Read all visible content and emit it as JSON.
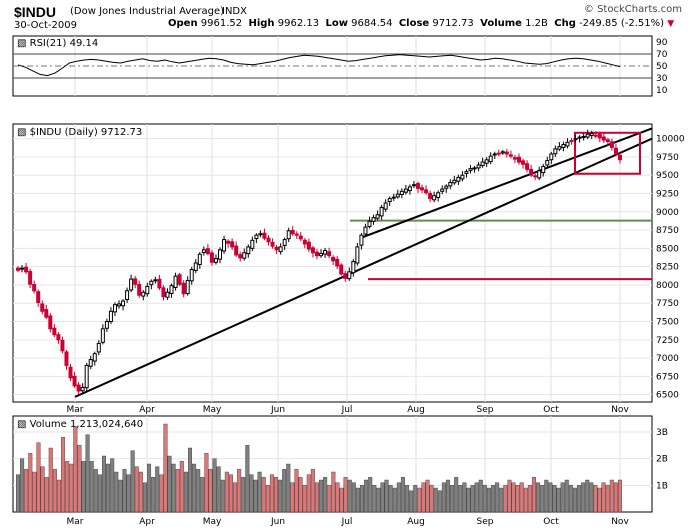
{
  "header": {
    "symbol": "$INDU",
    "description": "(Dow Jones Industrial Average)",
    "exchange": "INDX",
    "date": "30-Oct-2009",
    "open_label": "Open",
    "open": "9961.52",
    "high_label": "High",
    "high": "9962.13",
    "low_label": "Low",
    "low": "9684.54",
    "close_label": "Close",
    "close": "9712.73",
    "volume_label": "Volume",
    "volume": "1.2B",
    "chg_label": "Chg",
    "chg": "-249.85 (-2.51%)",
    "brand": "© StockCharts.com"
  },
  "colors": {
    "up": "#000000",
    "down": "#cc0033",
    "volume_up": "#808080",
    "volume_down": "#dd7777",
    "support": "#cc0033",
    "midline": "#668855"
  },
  "chart_data": [
    {
      "type": "line",
      "title": "RSI(21) 49.14",
      "ylim": [
        0,
        100
      ],
      "yticks": [
        90,
        70,
        50,
        30,
        10
      ],
      "reference_lines": [
        70,
        50,
        30
      ],
      "y": [
        52,
        48,
        42,
        36,
        34,
        38,
        46,
        55,
        58,
        60,
        61,
        60,
        58,
        56,
        55,
        58,
        60,
        62,
        59,
        58,
        60,
        57,
        55,
        57,
        59,
        61,
        63,
        62,
        60,
        56,
        54,
        53,
        52,
        54,
        56,
        58,
        61,
        64,
        66,
        68,
        67,
        66,
        64,
        62,
        60,
        58,
        59,
        61,
        63,
        65,
        67,
        68,
        69,
        68,
        67,
        66,
        65,
        66,
        67,
        68,
        66,
        64,
        62,
        60,
        61,
        63,
        62,
        60,
        58,
        55,
        54,
        53,
        54,
        57,
        60,
        62,
        63,
        62,
        60,
        58,
        55,
        52,
        49
      ]
    },
    {
      "type": "candlestick",
      "title": "$INDU (Daily) 9712.73",
      "x_labels": [
        "Mar",
        "Apr",
        "May",
        "Jun",
        "Jul",
        "Aug",
        "Sep",
        "Oct",
        "Nov"
      ],
      "ylim": [
        6400,
        10200
      ],
      "yticks": [
        10000,
        9750,
        9500,
        9250,
        9000,
        8750,
        8500,
        8250,
        8000,
        7750,
        7500,
        7250,
        7000,
        6750,
        6500
      ],
      "close": [
        8200,
        8230,
        8180,
        8010,
        7920,
        7760,
        7640,
        7560,
        7400,
        7320,
        7250,
        7100,
        6900,
        6730,
        6620,
        6550,
        6600,
        6900,
        6980,
        7060,
        7200,
        7400,
        7500,
        7640,
        7730,
        7740,
        7780,
        7920,
        8080,
        8010,
        7860,
        7900,
        7980,
        8050,
        8070,
        7960,
        7840,
        7900,
        7990,
        8120,
        8010,
        7880,
        8060,
        8210,
        8300,
        8420,
        8480,
        8430,
        8310,
        8360,
        8480,
        8620,
        8570,
        8520,
        8410,
        8370,
        8440,
        8520,
        8610,
        8680,
        8700,
        8640,
        8590,
        8530,
        8480,
        8520,
        8620,
        8740,
        8700,
        8680,
        8630,
        8560,
        8490,
        8440,
        8400,
        8430,
        8470,
        8400,
        8330,
        8260,
        8150,
        8090,
        8180,
        8320,
        8520,
        8680,
        8790,
        8870,
        8920,
        8960,
        9060,
        9120,
        9180,
        9200,
        9240,
        9280,
        9310,
        9340,
        9370,
        9320,
        9300,
        9260,
        9180,
        9220,
        9260,
        9310,
        9350,
        9400,
        9430,
        9470,
        9500,
        9550,
        9590,
        9600,
        9640,
        9680,
        9710,
        9760,
        9790,
        9800,
        9820,
        9790,
        9760,
        9720,
        9680,
        9650,
        9580,
        9500,
        9480,
        9560,
        9620,
        9700,
        9790,
        9860,
        9890,
        9920,
        9950,
        9970,
        10000,
        10020,
        10030,
        10060,
        10070,
        10040,
        10010,
        9980,
        9960,
        9880,
        9790,
        9712
      ],
      "trendlines": [
        {
          "name": "upper",
          "from": [
            "May",
            8650
          ],
          "to": [
            "Nov",
            10140
          ]
        },
        {
          "name": "lower",
          "from": [
            "Mar",
            6470
          ],
          "to": [
            "Nov",
            10000
          ]
        }
      ],
      "horizontal_lines": [
        8880,
        8080
      ],
      "highlight_box": {
        "from_price": 9520,
        "to_price": 10080
      }
    },
    {
      "type": "bar",
      "title": "Volume 1,213,024,640",
      "yticks": [
        "3B",
        "2B",
        "1B"
      ],
      "ylim": [
        0,
        3.6
      ],
      "values": [
        1.4,
        2.0,
        1.6,
        2.2,
        1.5,
        2.6,
        1.7,
        1.3,
        2.4,
        1.6,
        1.2,
        2.8,
        1.9,
        1.8,
        3.2,
        2.5,
        1.9,
        2.9,
        1.9,
        1.6,
        1.4,
        2.1,
        1.8,
        2.0,
        1.5,
        1.2,
        1.6,
        1.4,
        2.3,
        1.7,
        1.5,
        1.1,
        1.8,
        1.3,
        1.7,
        1.4,
        3.3,
        2.1,
        1.8,
        1.6,
        1.9,
        1.5,
        2.4,
        1.8,
        1.6,
        1.3,
        2.2,
        1.6,
        2.0,
        1.7,
        1.2,
        1.5,
        1.4,
        1.1,
        1.6,
        1.3,
        2.5,
        1.4,
        1.2,
        1.5,
        1.3,
        1.0,
        1.4,
        1.3,
        1.2,
        1.6,
        1.8,
        1.1,
        1.6,
        1.3,
        1.0,
        1.4,
        1.6,
        1.1,
        1.2,
        1.3,
        1.0,
        1.5,
        1.1,
        0.9,
        1.3,
        1.2,
        1.1,
        0.9,
        1.0,
        1.2,
        1.3,
        1.0,
        0.9,
        1.1,
        1.2,
        1.0,
        0.9,
        1.1,
        1.3,
        1.0,
        0.8,
        1.0,
        0.9,
        1.1,
        1.2,
        1.0,
        0.9,
        0.8,
        1.1,
        1.2,
        1.0,
        1.3,
        1.0,
        1.1,
        0.9,
        1.0,
        1.1,
        1.2,
        1.0,
        0.9,
        1.0,
        1.1,
        0.9,
        1.0,
        1.2,
        1.1,
        1.0,
        1.1,
        0.9,
        1.0,
        1.3,
        1.1,
        1.0,
        1.2,
        1.1,
        1.0,
        0.9,
        1.1,
        1.2,
        1.0,
        0.9,
        1.0,
        1.1,
        1.2,
        1.1,
        1.0,
        0.9,
        1.1,
        1.0,
        1.2,
        1.1,
        1.2
      ]
    }
  ]
}
